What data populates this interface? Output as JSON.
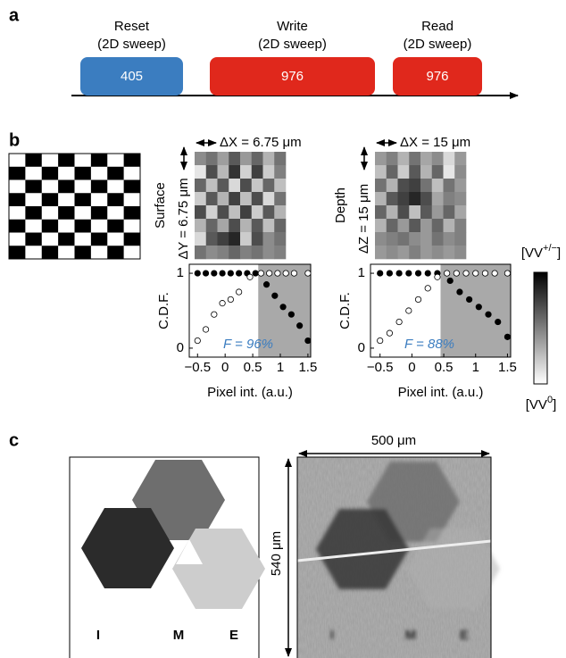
{
  "panel_a": {
    "label": "a",
    "steps": [
      {
        "title": "Reset",
        "subtitle": "(2D sweep)",
        "value": 405,
        "color": "#3b7dc0"
      },
      {
        "title": "Write",
        "subtitle": "(2D sweep)",
        "value": 976,
        "color": "#e0281c"
      },
      {
        "title": "Read",
        "subtitle": "(2D sweep)",
        "value": 976,
        "color": "#e0281c"
      }
    ]
  },
  "panel_b": {
    "label": "b",
    "surface": {
      "side_label": "Surface",
      "x_label": "ΔX = 6.75 μm",
      "y_label": "ΔY = 6.75 μm",
      "map": [
        [
          0.55,
          0.45,
          0.62,
          0.35,
          0.6,
          0.4,
          0.7,
          0.45
        ],
        [
          0.9,
          0.3,
          0.72,
          0.2,
          0.82,
          0.25,
          0.8,
          0.5
        ],
        [
          0.4,
          0.75,
          0.35,
          0.85,
          0.3,
          0.78,
          0.4,
          0.75
        ],
        [
          0.8,
          0.35,
          0.7,
          0.25,
          0.75,
          0.3,
          0.85,
          0.45
        ],
        [
          0.3,
          0.82,
          0.3,
          0.75,
          0.25,
          0.8,
          0.35,
          0.7
        ],
        [
          0.7,
          0.4,
          0.65,
          0.3,
          0.7,
          0.35,
          0.75,
          0.4
        ],
        [
          0.85,
          0.35,
          0.25,
          0.15,
          0.8,
          0.3,
          0.55,
          0.45
        ],
        [
          0.45,
          0.55,
          0.5,
          0.4,
          0.5,
          0.45,
          0.55,
          0.5
        ]
      ]
    },
    "depth": {
      "side_label": "Depth",
      "x_label": "ΔX = 15 μm",
      "y_label": "ΔZ = 15 μm",
      "map": [
        [
          0.6,
          0.5,
          0.7,
          0.45,
          0.65,
          0.55,
          0.85,
          0.6
        ],
        [
          0.75,
          0.4,
          0.8,
          0.35,
          0.7,
          0.4,
          0.9,
          0.55
        ],
        [
          0.45,
          0.7,
          0.3,
          0.25,
          0.45,
          0.75,
          0.45,
          0.6
        ],
        [
          0.7,
          0.35,
          0.25,
          0.15,
          0.3,
          0.65,
          0.5,
          0.55
        ],
        [
          0.4,
          0.7,
          0.3,
          0.75,
          0.35,
          0.6,
          0.4,
          0.65
        ],
        [
          0.7,
          0.4,
          0.6,
          0.35,
          0.6,
          0.4,
          0.7,
          0.5
        ],
        [
          0.55,
          0.5,
          0.45,
          0.55,
          0.6,
          0.45,
          0.55,
          0.5
        ],
        [
          0.6,
          0.55,
          0.6,
          0.5,
          0.6,
          0.55,
          0.6,
          0.55
        ]
      ]
    },
    "colorbar": {
      "top": {
        "open": "[VV",
        "sup": "+/−",
        "close": "]"
      },
      "bottom": {
        "open": "[VV",
        "sup": "0",
        "close": "]"
      }
    }
  },
  "chart_data": [
    {
      "type": "scatter",
      "xlabel": "Pixel int. (a.u.)",
      "ylabel": "C.D.F.",
      "annotation": "F = 96%",
      "annotation_color": "#3b7dc0",
      "xlim": [
        -0.65,
        1.55
      ],
      "ylim": [
        -0.12,
        1.12
      ],
      "xticks": [
        {
          "value": -0.5,
          "label": "−0.5"
        },
        0,
        0.5,
        1,
        1.5
      ],
      "yticks": [
        0,
        1
      ],
      "shade_from": 0.6,
      "shade_color": "#a9a9a9",
      "series": [
        {
          "color": "#000000",
          "filled": true,
          "x": [
            -0.5,
            -0.35,
            -0.2,
            -0.05,
            0.1,
            0.25,
            0.4,
            0.55,
            0.75,
            0.9,
            1.05,
            1.2,
            1.35,
            1.5
          ],
          "values": [
            1,
            1,
            1,
            1,
            1,
            1,
            1,
            1,
            0.85,
            0.7,
            0.55,
            0.45,
            0.3,
            0.1
          ]
        },
        {
          "color": "#000000",
          "filled": false,
          "x": [
            -0.5,
            -0.35,
            -0.2,
            -0.05,
            0.1,
            0.25,
            0.45,
            0.65,
            0.8,
            0.95,
            1.1,
            1.25,
            1.5
          ],
          "values": [
            0.1,
            0.25,
            0.45,
            0.6,
            0.65,
            0.75,
            0.95,
            1,
            1,
            1,
            1,
            1,
            1
          ]
        }
      ]
    },
    {
      "type": "scatter",
      "xlabel": "Pixel int. (a.u.)",
      "ylabel": "C.D.F.",
      "annotation": "F = 88%",
      "annotation_color": "#3b7dc0",
      "xlim": [
        -0.65,
        1.55
      ],
      "ylim": [
        -0.12,
        1.12
      ],
      "xticks": [
        {
          "value": -0.5,
          "label": "−0.5"
        },
        0,
        0.5,
        1,
        1.5
      ],
      "yticks": [
        0,
        1
      ],
      "shade_from": 0.45,
      "shade_color": "#a9a9a9",
      "series": [
        {
          "color": "#000000",
          "filled": true,
          "x": [
            -0.5,
            -0.35,
            -0.2,
            -0.05,
            0.1,
            0.25,
            0.4,
            0.6,
            0.75,
            0.9,
            1.05,
            1.2,
            1.35,
            1.5
          ],
          "values": [
            1,
            1,
            1,
            1,
            1,
            1,
            1,
            0.9,
            0.75,
            0.65,
            0.55,
            0.45,
            0.35,
            0.15
          ]
        },
        {
          "color": "#000000",
          "filled": false,
          "x": [
            -0.5,
            -0.35,
            -0.2,
            -0.05,
            0.1,
            0.25,
            0.4,
            0.55,
            0.7,
            0.85,
            1.0,
            1.15,
            1.3,
            1.5
          ],
          "values": [
            0.1,
            0.2,
            0.35,
            0.5,
            0.65,
            0.8,
            0.95,
            1,
            1,
            1,
            1,
            1,
            1,
            1
          ]
        }
      ]
    }
  ],
  "panel_c": {
    "label": "c",
    "width_label": "500 μm",
    "height_label": "540 μm",
    "letters": [
      "I",
      "M",
      "E"
    ]
  }
}
